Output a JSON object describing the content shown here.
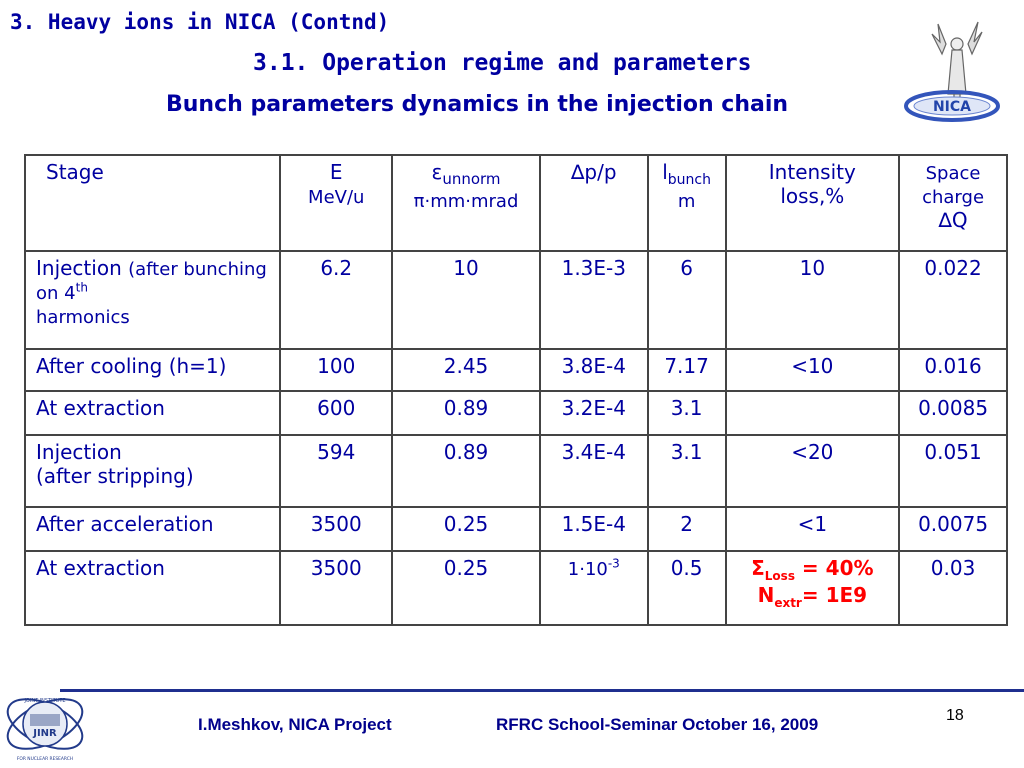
{
  "header": {
    "title": "3. Heavy ions in NICA (Contnd)",
    "subtitle": "3.1. Operation regime and parameters",
    "heading": "Bunch parameters dynamics in the injection chain",
    "logo_text": "NICA"
  },
  "table": {
    "col_stage": "Stage",
    "col_e": "E",
    "col_e_unit": "MeV/u",
    "col_eps_sym": "ε",
    "col_eps_sub": "unnorm",
    "col_eps_unit": "π·mm·mrad",
    "col_dp": "∆p/p",
    "col_l": "l",
    "col_l_sub": "bunch",
    "col_l_unit": "m",
    "col_int_1": "Intensity",
    "col_int_2": "loss,%",
    "col_sc_1": "Space",
    "col_sc_2": "charge",
    "col_sc_3": "∆Q",
    "rows": [
      {
        "stage_main": "Injection",
        "stage_note": "(after bunching on 4",
        "stage_note_sup": "th",
        "stage_note_2": "harmonics",
        "e": "6.2",
        "eps": "10",
        "dp": "1.3E-3",
        "l": "6",
        "int": "10",
        "sc": "0.022"
      },
      {
        "stage_main": "After cooling (h=1)",
        "e": "100",
        "eps": "2.45",
        "dp": "3.8E-4",
        "l": "7.17",
        "int": "<10",
        "sc": "0.016"
      },
      {
        "stage_main": "At extraction",
        "e": "600",
        "eps": "0.89",
        "dp": "3.2E-4",
        "l": "3.1",
        "int": "",
        "sc": "0.0085"
      },
      {
        "stage_main": "Injection",
        "stage_main_2": "(after stripping)",
        "e": "594",
        "eps": "0.89",
        "dp": "3.4E-4",
        "l": "3.1",
        "int": "<20",
        "sc": "0.051"
      },
      {
        "stage_main": "After acceleration",
        "e": "3500",
        "eps": "0.25",
        "dp": "1.5E-4",
        "l": "2",
        "int": "<1",
        "sc": "0.0075"
      },
      {
        "stage_main": "At extraction",
        "e": "3500",
        "eps": "0.25",
        "dp_base": "1·10",
        "dp_sup": "-3",
        "l": "0.5",
        "int_sym": "Σ",
        "int_sub": "Loss",
        "int_val": " = 40%",
        "int_n": "N",
        "int_n_sub": "extr",
        "int_n_val": "= 1E9",
        "sc": "0.03"
      }
    ]
  },
  "footer": {
    "author": "I.Meshkov, NICA Project",
    "event": "RFRC School-Seminar October 16, 2009",
    "page": "18",
    "jinr_label": "JINR",
    "jinr_top": "JOINT INSTITUTE",
    "jinr_bottom": "FOR NUCLEAR RESEARCH"
  }
}
